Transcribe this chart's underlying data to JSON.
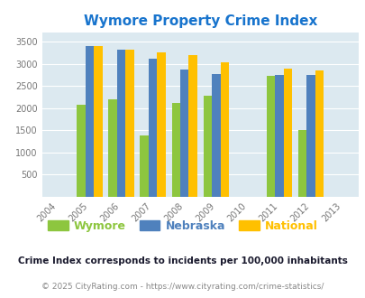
{
  "title": "Wymore Property Crime Index",
  "title_color": "#1874CD",
  "years": [
    2005,
    2006,
    2007,
    2008,
    2009,
    2011,
    2012
  ],
  "wymore": [
    2075,
    2200,
    1375,
    2125,
    2275,
    2725,
    1500
  ],
  "nebraska": [
    3400,
    3325,
    3125,
    2875,
    2775,
    2750,
    2750
  ],
  "national": [
    3400,
    3325,
    3250,
    3200,
    3025,
    2900,
    2850
  ],
  "wymore_color": "#8DC63F",
  "nebraska_color": "#4F81BD",
  "national_color": "#FFC000",
  "bg_color": "#dce9f0",
  "xlim": [
    2003.5,
    2013.5
  ],
  "ylim": [
    0,
    3700
  ],
  "yticks": [
    0,
    500,
    1000,
    1500,
    2000,
    2500,
    3000,
    3500
  ],
  "xticks": [
    2004,
    2005,
    2006,
    2007,
    2008,
    2009,
    2010,
    2011,
    2012,
    2013
  ],
  "bar_width": 0.27,
  "legend_labels": [
    "Wymore",
    "Nebraska",
    "National"
  ],
  "legend_colors": [
    "#8DC63F",
    "#4F81BD",
    "#FFC000"
  ],
  "footnote1": "Crime Index corresponds to incidents per 100,000 inhabitants",
  "footnote2": "© 2025 CityRating.com - https://www.cityrating.com/crime-statistics/",
  "footnote1_color": "#1a1a2e",
  "footnote2_color": "#888888"
}
